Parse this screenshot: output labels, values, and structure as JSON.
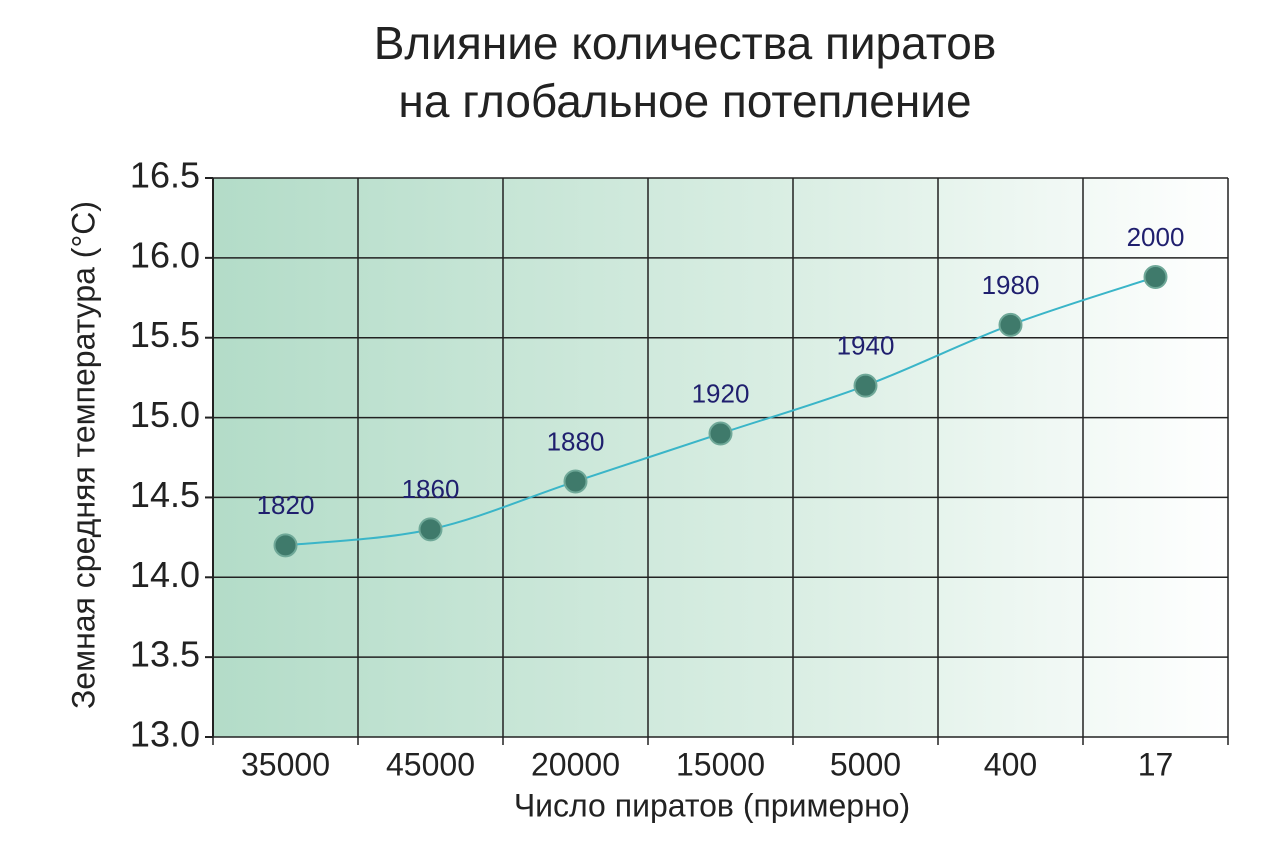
{
  "chart_data": {
    "type": "line",
    "title": [
      "Влияние количества пиратов",
      "на глобальное потепление"
    ],
    "x_label": "Число пиратов (примерно)",
    "y_label": "Земная средняя температура (°C)",
    "categories": [
      "35000",
      "45000",
      "20000",
      "15000",
      "5000",
      "400",
      "17"
    ],
    "values": [
      14.2,
      14.3,
      14.6,
      14.9,
      15.2,
      15.58,
      15.88
    ],
    "point_labels": [
      "1820",
      "1860",
      "1880",
      "1920",
      "1940",
      "1980",
      "2000"
    ],
    "color": "#3ab5c8",
    "marker_color": "#3f7a6b",
    "ylim": [
      13,
      16.5
    ],
    "yticks": [
      {
        "value": 13,
        "label": "13.0"
      },
      13.5,
      {
        "value": 14,
        "label": "14.0"
      },
      14.5,
      {
        "value": 15,
        "label": "15.0"
      },
      15.5,
      {
        "value": 16,
        "label": "16.0"
      },
      16.5
    ],
    "grid": true
  }
}
